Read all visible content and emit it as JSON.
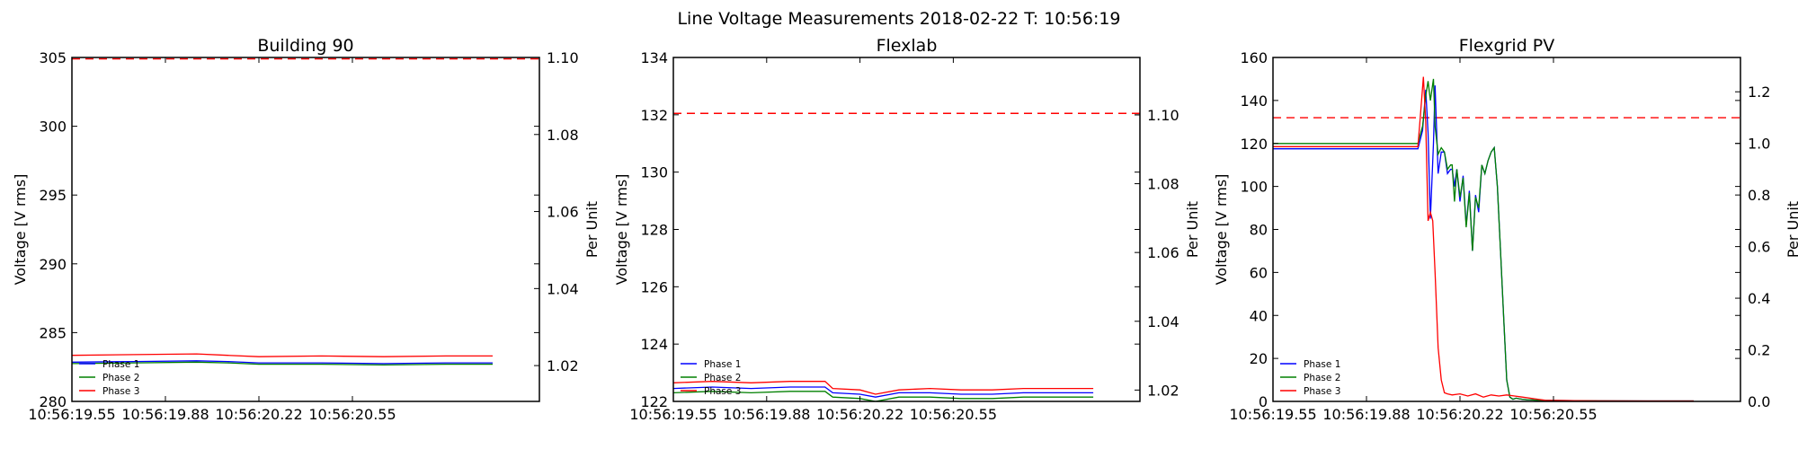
{
  "figure": {
    "title": "Line Voltage Measurements 2018-02-22 T: 10:56:19"
  },
  "chart_data": [
    {
      "type": "line",
      "title": "Building 90",
      "ylabel": "Voltage [V rms]",
      "y2label": "Per Unit",
      "xlim": [
        0,
        60
      ],
      "ylim": [
        280,
        305
      ],
      "y2lim": [
        1.0107,
        1.1
      ],
      "xticks": [
        {
          "x": 0,
          "label": "10:56:19.55"
        },
        {
          "x": 12,
          "label": "10:56:19.88"
        },
        {
          "x": 24,
          "label": "10:56:20.22"
        },
        {
          "x": 36,
          "label": "10:56:20.55"
        }
      ],
      "yticks": [
        280,
        285,
        290,
        295,
        300,
        305
      ],
      "y2ticks": [
        1.02,
        1.04,
        1.06,
        1.08,
        1.1
      ],
      "y2tick_labels": [
        "1.02",
        "1.04",
        "1.06",
        "1.08",
        "1.10"
      ],
      "limit_line": 304.9,
      "legend": {
        "position": "lower-left",
        "entries": [
          "Phase 1",
          "Phase 2",
          "Phase 3"
        ]
      },
      "series": [
        {
          "name": "Phase 1",
          "color": "#0000ff",
          "x": [
            0,
            8,
            16,
            20,
            24,
            32,
            40,
            48,
            54
          ],
          "y": [
            282.85,
            282.9,
            282.95,
            282.9,
            282.8,
            282.8,
            282.75,
            282.8,
            282.8
          ]
        },
        {
          "name": "Phase 2",
          "color": "#008000",
          "x": [
            0,
            8,
            16,
            20,
            24,
            32,
            40,
            48,
            54
          ],
          "y": [
            282.75,
            282.8,
            282.85,
            282.8,
            282.7,
            282.7,
            282.65,
            282.7,
            282.7
          ]
        },
        {
          "name": "Phase 3",
          "color": "#ff0000",
          "x": [
            0,
            8,
            16,
            20,
            24,
            32,
            40,
            48,
            54
          ],
          "y": [
            283.35,
            283.4,
            283.45,
            283.35,
            283.25,
            283.3,
            283.25,
            283.3,
            283.3
          ]
        }
      ]
    },
    {
      "type": "line",
      "title": "Flexlab",
      "ylabel": "Voltage [V rms]",
      "y2label": "Per Unit",
      "xlim": [
        0,
        60
      ],
      "ylim": [
        122,
        134
      ],
      "y2lim": [
        1.0167,
        1.1167
      ],
      "xticks": [
        {
          "x": 0,
          "label": "10:56:19.55"
        },
        {
          "x": 12,
          "label": "10:56:19.88"
        },
        {
          "x": 24,
          "label": "10:56:20.22"
        },
        {
          "x": 36,
          "label": "10:56:20.55"
        }
      ],
      "yticks": [
        122,
        124,
        126,
        128,
        130,
        132,
        134
      ],
      "y2ticks": [
        1.02,
        1.04,
        1.06,
        1.08,
        1.1
      ],
      "y2tick_labels": [
        "1.02",
        "1.04",
        "1.06",
        "1.08",
        "1.10"
      ],
      "limit_line": 132.05,
      "legend": {
        "position": "lower-left",
        "entries": [
          "Phase 1",
          "Phase 2",
          "Phase 3"
        ]
      },
      "series": [
        {
          "name": "Phase 1",
          "color": "#0000ff",
          "x": [
            0,
            5,
            10,
            15,
            19.5,
            20.5,
            24,
            26,
            29,
            33,
            37,
            41,
            45,
            49,
            54
          ],
          "y": [
            122.45,
            122.5,
            122.45,
            122.5,
            122.5,
            122.3,
            122.25,
            122.15,
            122.3,
            122.3,
            122.25,
            122.25,
            122.3,
            122.3,
            122.3
          ]
        },
        {
          "name": "Phase 2",
          "color": "#008000",
          "x": [
            0,
            5,
            10,
            15,
            19.5,
            20.5,
            24,
            26,
            29,
            33,
            37,
            41,
            45,
            49,
            54
          ],
          "y": [
            122.3,
            122.35,
            122.3,
            122.35,
            122.35,
            122.15,
            122.1,
            122.0,
            122.15,
            122.15,
            122.1,
            122.1,
            122.15,
            122.15,
            122.15
          ]
        },
        {
          "name": "Phase 3",
          "color": "#ff0000",
          "x": [
            0,
            5,
            10,
            15,
            19.5,
            20.5,
            24,
            26,
            29,
            33,
            37,
            41,
            45,
            49,
            54
          ],
          "y": [
            122.65,
            122.7,
            122.65,
            122.7,
            122.7,
            122.45,
            122.4,
            122.25,
            122.4,
            122.45,
            122.4,
            122.4,
            122.45,
            122.45,
            122.45
          ]
        }
      ]
    },
    {
      "type": "line",
      "title": "Flexgrid PV",
      "ylabel": "Voltage [V rms]",
      "y2label": "Per Unit",
      "xlim": [
        0,
        60
      ],
      "ylim": [
        0,
        160
      ],
      "y2lim": [
        0,
        1.333
      ],
      "xticks": [
        {
          "x": 0,
          "label": "10:56:19.55"
        },
        {
          "x": 12,
          "label": "10:56:19.88"
        },
        {
          "x": 24,
          "label": "10:56:20.22"
        },
        {
          "x": 36,
          "label": "10:56:20.55"
        }
      ],
      "yticks": [
        0,
        20,
        40,
        60,
        80,
        100,
        120,
        140,
        160
      ],
      "y2ticks": [
        0,
        0.2,
        0.4,
        0.6,
        0.8,
        1.0,
        1.2
      ],
      "y2tick_labels": [
        "0.0",
        "0.2",
        "0.4",
        "0.6",
        "0.8",
        "1.0",
        "1.2"
      ],
      "limit_line": 132,
      "legend": {
        "position": "lower-left",
        "entries": [
          "Phase 1",
          "Phase 2",
          "Phase 3"
        ]
      },
      "series": [
        {
          "name": "Phase 1",
          "color": "#0000ff",
          "x": [
            0,
            18.6,
            19.2,
            19.6,
            19.9,
            20.2,
            20.6,
            20.8,
            21.2,
            21.6,
            22.0,
            22.4,
            22.8,
            23.0,
            23.3,
            23.6,
            24.0,
            24.4,
            24.8,
            25.2,
            25.6,
            26.0,
            26.4,
            26.8,
            27.2,
            27.6,
            28.0,
            28.4,
            28.8,
            29.2,
            29.6,
            30.0,
            30.4,
            30.8,
            31.2,
            31.6,
            32.0,
            32.6,
            33.0,
            34.0,
            40,
            48,
            54
          ],
          "y": [
            117.5,
            117.5,
            126,
            145,
            125,
            85,
            120,
            147,
            106,
            116,
            116,
            106,
            108,
            108,
            100,
            108,
            93,
            105,
            82,
            98,
            70,
            96,
            88,
            110,
            106,
            112,
            116,
            118,
            100,
            70,
            40,
            10,
            2,
            1,
            1.5,
            1.2,
            1.0,
            0.8,
            0.8,
            0.5,
            0.3,
            0.2,
            0.2
          ]
        },
        {
          "name": "Phase 2",
          "color": "#008000",
          "x": [
            0,
            18.6,
            19.2,
            19.6,
            19.9,
            20.2,
            20.6,
            20.8,
            21.2,
            21.6,
            22.0,
            22.4,
            22.8,
            23.0,
            23.3,
            23.6,
            24.0,
            24.4,
            24.8,
            25.2,
            25.6,
            26.0,
            26.4,
            26.8,
            27.2,
            27.6,
            28.0,
            28.4,
            28.8,
            29.2,
            29.6,
            30.0,
            30.4,
            30.8,
            31.2,
            31.6,
            32.0,
            32.6,
            33.0,
            34.0,
            40,
            48,
            54
          ],
          "y": [
            120,
            120,
            128,
            142,
            149,
            140,
            150,
            128,
            115,
            118,
            116,
            108,
            110,
            110,
            93,
            108,
            95,
            104,
            81,
            97,
            70,
            95,
            90,
            110,
            106,
            112,
            116,
            118,
            100,
            70,
            40,
            10,
            2,
            1,
            1.5,
            1.2,
            1.0,
            0.8,
            0.8,
            0.5,
            0.3,
            0.2,
            0.2
          ]
        },
        {
          "name": "Phase 3",
          "color": "#ff0000",
          "x": [
            0,
            18.6,
            18.9,
            19.3,
            19.6,
            19.9,
            20.2,
            20.5,
            20.8,
            21.2,
            21.6,
            22.0,
            22.4,
            23.0,
            24.0,
            25.0,
            26.0,
            27.0,
            28.0,
            29.0,
            30.0,
            31.0,
            32.0,
            33.0,
            34.0,
            35.0,
            40,
            48,
            54
          ],
          "y": [
            118.5,
            118.5,
            132,
            151,
            130,
            84,
            88,
            84,
            60,
            25,
            10,
            4,
            3.5,
            3,
            3.5,
            2.5,
            3.5,
            2,
            3,
            2.5,
            3,
            2.5,
            2,
            1.5,
            1,
            0.5,
            0.3,
            0.2,
            0.2
          ]
        }
      ]
    }
  ]
}
